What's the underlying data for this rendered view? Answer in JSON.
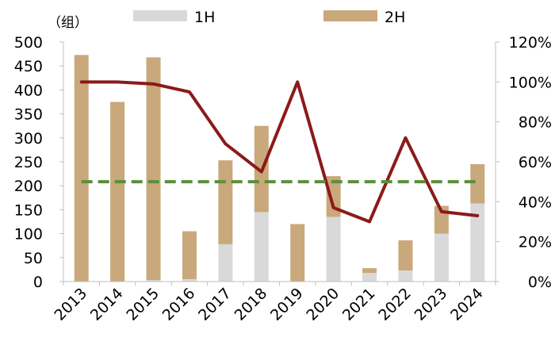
{
  "chart_data": {
    "type": "bar",
    "stacked": true,
    "categories": [
      "2013",
      "2014",
      "2015",
      "2016",
      "2017",
      "2018",
      "2019",
      "2020",
      "2021",
      "2022",
      "2023",
      "2024"
    ],
    "series": [
      {
        "name": "1H",
        "type": "bar",
        "axis": "left",
        "color": "#d9d9d9",
        "values": [
          0,
          0,
          3,
          5,
          78,
          145,
          0,
          135,
          18,
          23,
          100,
          163
        ]
      },
      {
        "name": "2H",
        "type": "bar",
        "axis": "left",
        "color": "#c9a87c",
        "values": [
          473,
          375,
          465,
          100,
          175,
          180,
          120,
          85,
          10,
          63,
          58,
          82
        ]
      },
      {
        "type": "line",
        "axis": "right",
        "color": "#8b1a1a",
        "values": [
          1.0,
          1.0,
          0.99,
          0.95,
          0.69,
          0.55,
          1.0,
          0.37,
          0.3,
          0.72,
          0.35,
          0.33
        ]
      },
      {
        "type": "line",
        "axis": "right",
        "dashed": true,
        "color": "#5b8f3a",
        "values": [
          0.5,
          0.5,
          0.5,
          0.5,
          0.5,
          0.5,
          0.5,
          0.5,
          0.5,
          0.5,
          0.5,
          0.5
        ]
      }
    ],
    "left_axis": {
      "unit_label": "（组）",
      "min": 0,
      "max": 500,
      "ticks": [
        "0",
        "50",
        "100",
        "150",
        "200",
        "250",
        "300",
        "350",
        "400",
        "450",
        "500"
      ]
    },
    "right_axis": {
      "min": 0,
      "max": 1.2,
      "ticks": [
        "0%",
        "20%",
        "40%",
        "60%",
        "80%",
        "100%",
        "120%"
      ]
    },
    "legend": {
      "placement": "top",
      "items": [
        {
          "label": "1H",
          "color": "#d9d9d9"
        },
        {
          "label": "2H",
          "color": "#c9a87c"
        }
      ]
    },
    "grid": false
  }
}
